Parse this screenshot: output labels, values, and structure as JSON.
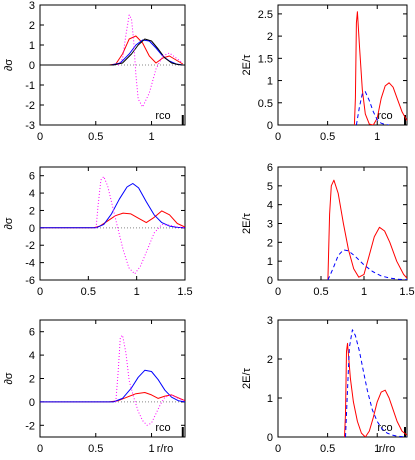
{
  "chart_data": [
    {
      "type": "line",
      "ylabel": "∂σ",
      "xlabel": "",
      "xlim": [
        0,
        1.3
      ],
      "ylim": [
        -3,
        3
      ],
      "xticks": [
        "0",
        "0.5",
        "1"
      ],
      "yticks": [
        "-3",
        "-2",
        "-1",
        "0",
        "1",
        "2",
        "3"
      ],
      "annotation": "rco",
      "marker_x": 1.28,
      "zero_line": true,
      "series": [
        {
          "style": "red-solid",
          "color": "#ff0000",
          "x": [
            0,
            0.62,
            0.68,
            0.74,
            0.8,
            0.86,
            0.92,
            0.98,
            1.04,
            1.1,
            1.16,
            1.22,
            1.28
          ],
          "y": [
            0,
            0,
            0.05,
            0.55,
            1.3,
            1.45,
            1.1,
            0.45,
            0.1,
            0.35,
            0.45,
            0.25,
            0.05
          ]
        },
        {
          "style": "blue-solid",
          "color": "#0000ff",
          "x": [
            0,
            0.64,
            0.72,
            0.8,
            0.86,
            0.92,
            0.98,
            1.04,
            1.1,
            1.16,
            1.22,
            1.28
          ],
          "y": [
            0,
            0,
            0.1,
            0.55,
            1.0,
            1.25,
            1.2,
            0.85,
            0.45,
            0.2,
            0.05,
            0
          ]
        },
        {
          "style": "black-solid",
          "color": "#000000",
          "x": [
            0,
            0.66,
            0.74,
            0.82,
            0.88,
            0.94,
            1.0,
            1.06,
            1.12,
            1.18,
            1.24,
            1.28
          ],
          "y": [
            0,
            0,
            0.1,
            0.55,
            1.0,
            1.3,
            1.2,
            0.8,
            0.35,
            0.1,
            0.02,
            0
          ]
        },
        {
          "style": "magenta-dotted",
          "color": "#ff00ff",
          "x": [
            0.7,
            0.74,
            0.77,
            0.8,
            0.82,
            0.84,
            0.86,
            0.88,
            0.92,
            0.98,
            1.04,
            1.1,
            1.16,
            1.22,
            1.28
          ],
          "y": [
            0,
            0.3,
            1.5,
            2.5,
            2.3,
            1.2,
            -0.5,
            -1.7,
            -2.1,
            -1.4,
            -0.2,
            0.45,
            0.6,
            0.35,
            0.1
          ]
        }
      ]
    },
    {
      "type": "line",
      "ylabel": "2E/τ",
      "xlabel": "",
      "xlim": [
        0,
        1.3
      ],
      "ylim": [
        0,
        2.7
      ],
      "xticks": [
        "0",
        "0.5",
        "1"
      ],
      "yticks": [
        "0",
        "0.5",
        "1",
        "1.5",
        "2",
        "2.5"
      ],
      "annotation": "rco",
      "marker_x": 1.28,
      "zero_line": false,
      "series": [
        {
          "style": "red-solid",
          "color": "#ff0000",
          "x": [
            0.77,
            0.78,
            0.79,
            0.8,
            0.82,
            0.85,
            0.88,
            0.92,
            0.96,
            1.0,
            1.04,
            1.08,
            1.12,
            1.16,
            1.2,
            1.25,
            1.3
          ],
          "y": [
            0,
            0.6,
            2.3,
            2.55,
            1.8,
            0.8,
            0.25,
            0.02,
            0.0,
            0.15,
            0.6,
            0.88,
            0.95,
            0.85,
            0.6,
            0.3,
            0.1
          ]
        },
        {
          "style": "blue-dashed",
          "color": "#0000ff",
          "x": [
            0.79,
            0.82,
            0.85,
            0.88,
            0.92,
            0.96,
            1.0,
            1.04,
            1.08,
            1.12
          ],
          "y": [
            0,
            0.4,
            0.7,
            0.75,
            0.55,
            0.3,
            0.12,
            0.04,
            0.01,
            0
          ]
        }
      ]
    },
    {
      "type": "line",
      "ylabel": "∂σ",
      "xlabel": "",
      "xlim": [
        0,
        1.5
      ],
      "ylim": [
        -6,
        7
      ],
      "xticks": [
        "0",
        "0.5",
        "1",
        "1.5"
      ],
      "yticks": [
        "-6",
        "-4",
        "-2",
        "0",
        "2",
        "4",
        "6"
      ],
      "annotation": "",
      "zero_line": true,
      "series": [
        {
          "style": "red-solid",
          "color": "#ff0000",
          "x": [
            0,
            0.55,
            0.62,
            0.7,
            0.78,
            0.86,
            0.94,
            1.02,
            1.1,
            1.18,
            1.26,
            1.34,
            1.42,
            1.5
          ],
          "y": [
            0,
            0,
            0.2,
            0.8,
            1.4,
            1.7,
            1.6,
            1.1,
            0.6,
            1.2,
            1.95,
            1.5,
            0.5,
            0.1
          ]
        },
        {
          "style": "blue-solid",
          "color": "#0000ff",
          "x": [
            0,
            0.58,
            0.66,
            0.74,
            0.82,
            0.9,
            0.96,
            1.02,
            1.1,
            1.18,
            1.26,
            1.34,
            1.42,
            1.5
          ],
          "y": [
            0,
            0,
            0.4,
            1.6,
            3.3,
            4.7,
            5.1,
            4.6,
            3.0,
            1.5,
            0.6,
            0.2,
            0.05,
            0
          ]
        },
        {
          "style": "magenta-dotted",
          "color": "#ff00ff",
          "x": [
            0.58,
            0.6,
            0.63,
            0.66,
            0.7,
            0.75,
            0.8,
            0.86,
            0.92,
            0.98,
            1.04,
            1.1,
            1.18,
            1.26,
            1.34,
            1.42,
            1.5
          ],
          "y": [
            0,
            2.5,
            5.5,
            5.9,
            4.8,
            2.5,
            0.2,
            -2.5,
            -4.6,
            -5.3,
            -4.4,
            -2.8,
            -0.6,
            0.4,
            0.3,
            0.1,
            0
          ]
        }
      ]
    },
    {
      "type": "line",
      "ylabel": "2E/τ",
      "xlabel": "",
      "xlim": [
        0,
        1.5
      ],
      "ylim": [
        0,
        6
      ],
      "xticks": [
        "0",
        "0.5",
        "1",
        "1.5"
      ],
      "yticks": [
        "0",
        "1",
        "2",
        "3",
        "4",
        "5",
        "6"
      ],
      "annotation": "",
      "zero_line": false,
      "series": [
        {
          "style": "red-solid",
          "color": "#ff0000",
          "x": [
            0.58,
            0.6,
            0.62,
            0.65,
            0.7,
            0.76,
            0.82,
            0.88,
            0.94,
            1.0,
            1.06,
            1.12,
            1.18,
            1.24,
            1.3,
            1.38,
            1.46,
            1.5
          ],
          "y": [
            0,
            3.5,
            5.0,
            5.3,
            4.6,
            3.0,
            1.6,
            0.6,
            0.15,
            0.3,
            1.3,
            2.3,
            2.8,
            2.6,
            2.0,
            1.0,
            0.3,
            0.1
          ]
        },
        {
          "style": "blue-dashed",
          "color": "#0000ff",
          "x": [
            0.58,
            0.64,
            0.7,
            0.76,
            0.82,
            0.9,
            1.0,
            1.1,
            1.2,
            1.3,
            1.4,
            1.5
          ],
          "y": [
            0,
            0.6,
            1.3,
            1.6,
            1.55,
            1.25,
            0.8,
            0.45,
            0.22,
            0.1,
            0.04,
            0.01
          ]
        }
      ]
    },
    {
      "type": "line",
      "ylabel": "∂σ",
      "xlabel": "r/ro",
      "xlim": [
        0,
        1.3
      ],
      "ylim": [
        -3,
        7
      ],
      "xticks": [
        "0",
        "0.5",
        "1"
      ],
      "yticks": [
        "-2",
        "0",
        "2",
        "4",
        "6"
      ],
      "annotation": "rco",
      "marker_x": 1.28,
      "zero_line": true,
      "series": [
        {
          "style": "red-solid",
          "color": "#ff0000",
          "x": [
            0,
            0.62,
            0.7,
            0.78,
            0.86,
            0.94,
            1.0,
            1.06,
            1.12,
            1.18,
            1.24,
            1.3
          ],
          "y": [
            0,
            0,
            0.1,
            0.4,
            0.7,
            0.8,
            0.6,
            0.3,
            0.5,
            0.6,
            0.35,
            0.1
          ]
        },
        {
          "style": "blue-solid",
          "color": "#0000ff",
          "x": [
            0,
            0.66,
            0.74,
            0.82,
            0.88,
            0.94,
            1.0,
            1.06,
            1.12,
            1.18,
            1.24,
            1.3
          ],
          "y": [
            0,
            0,
            0.3,
            1.2,
            2.1,
            2.7,
            2.6,
            1.9,
            1.0,
            0.4,
            0.1,
            0
          ]
        },
        {
          "style": "magenta-dotted",
          "color": "#ff00ff",
          "x": [
            0.68,
            0.7,
            0.72,
            0.74,
            0.77,
            0.8,
            0.84,
            0.88,
            0.92,
            0.96,
            1.0,
            1.04,
            1.08,
            1.12,
            1.18,
            1.24,
            1.3
          ],
          "y": [
            0,
            2.5,
            5.5,
            5.7,
            4.2,
            1.8,
            0.4,
            -0.8,
            -1.6,
            -2.0,
            -1.8,
            -1.0,
            -0.2,
            0.4,
            0.6,
            0.3,
            0.1
          ]
        }
      ]
    },
    {
      "type": "line",
      "ylabel": "2E/τ",
      "xlabel": "r/ro",
      "xlim": [
        0,
        1.3
      ],
      "ylim": [
        0,
        3
      ],
      "xticks": [
        "0",
        "0.5",
        "1"
      ],
      "yticks": [
        "0",
        "1",
        "2",
        "3"
      ],
      "annotation": "rco",
      "marker_x": 1.28,
      "zero_line": false,
      "series": [
        {
          "style": "red-solid",
          "color": "#ff0000",
          "x": [
            0.67,
            0.68,
            0.69,
            0.7,
            0.71,
            0.73,
            0.76,
            0.8,
            0.84,
            0.88,
            0.92,
            0.96,
            1.0,
            1.04,
            1.08,
            1.12,
            1.16,
            1.2,
            1.25,
            1.3
          ],
          "y": [
            0,
            0.6,
            2.2,
            2.4,
            2.1,
            1.5,
            0.9,
            0.4,
            0.1,
            0.0,
            0.15,
            0.5,
            0.9,
            1.15,
            1.2,
            1.0,
            0.7,
            0.4,
            0.15,
            0.05
          ]
        },
        {
          "style": "blue-dashed",
          "color": "#0000ff",
          "x": [
            0.68,
            0.7,
            0.72,
            0.75,
            0.78,
            0.82,
            0.86,
            0.9,
            0.95,
            1.0,
            1.05,
            1.1,
            1.15,
            1.2,
            1.25,
            1.3
          ],
          "y": [
            0,
            1.2,
            2.3,
            2.75,
            2.6,
            2.2,
            1.7,
            1.2,
            0.7,
            0.4,
            0.2,
            0.1,
            0.05,
            0.02,
            0.01,
            0
          ]
        }
      ]
    }
  ]
}
